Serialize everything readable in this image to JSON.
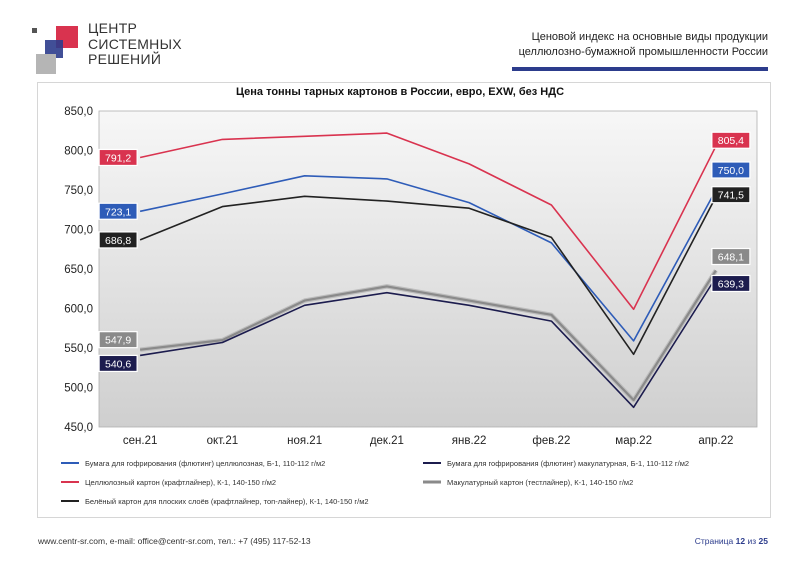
{
  "header": {
    "logo_lines": [
      "ЦЕНТР",
      "СИСТЕМНЫХ",
      "РЕШЕНИЙ"
    ],
    "title_line1": "Ценовой индекс на основные виды продукции",
    "title_line2": "целлюлозно-бумажной промышленности России"
  },
  "colors": {
    "accent": "#2c3c8c",
    "logo_red": "#d9334f",
    "logo_blue": "#2c3c8c",
    "logo_gray": "#b5b5b5"
  },
  "chart_data": {
    "type": "line",
    "title": "Цена тонны тарных картонов в России, евро, EXW, без НДС",
    "categories": [
      "сен.21",
      "окт.21",
      "ноя.21",
      "дек.21",
      "янв.22",
      "фев.22",
      "мар.22",
      "апр.22"
    ],
    "ylim": [
      450,
      850
    ],
    "yticks": [
      "850,0",
      "800,0",
      "750,0",
      "700,0",
      "650,0",
      "600,0",
      "550,0",
      "500,0",
      "450,0"
    ],
    "grid": false,
    "legend_position": "bottom",
    "series": [
      {
        "name": "Бумага для гофрирования (флютинг) целлюлозная, Б-1, 110-112 г/м2",
        "color": "#2e5cb8",
        "values": [
          723.1,
          745,
          768,
          764,
          734,
          683,
          559,
          750.0
        ],
        "labels": [
          "723,1",
          "750,0"
        ]
      },
      {
        "name": "Бумага для гофрирования (флютинг) макулатурная, Б-1, 110-112 г/м2",
        "color": "#1c1c4e",
        "values": [
          540.6,
          557,
          604,
          620,
          604,
          584,
          475,
          639.3
        ],
        "labels": [
          "540,6",
          "639,3"
        ]
      },
      {
        "name": "Целлюлозный картон (крафтлайнер), К-1, 140-150 г/м2",
        "color": "#d9334f",
        "values": [
          791.2,
          814,
          818,
          822,
          783,
          731,
          599,
          805.4
        ],
        "labels": [
          "791,2",
          "805,4"
        ]
      },
      {
        "name": "Макулатурный картон (тестлайнер), К-1, 140-150 г/м2",
        "color": "#8a8a8a",
        "values": [
          547.9,
          560,
          610,
          628,
          610,
          592,
          484,
          648.1
        ],
        "labels": [
          "547,9",
          "648,1"
        ]
      },
      {
        "name": "Белёный картон для плоских слоёв (крафтлайнер, топ-лайнер), К-1, 140-150 г/м2",
        "color": "#222222",
        "values": [
          686.8,
          729,
          742,
          736,
          727,
          690,
          542,
          741.5
        ],
        "labels": [
          "686,8",
          "741,5"
        ]
      }
    ]
  },
  "footer": {
    "contacts": "www.centr-sr.com, e-mail: office@centr-sr.com, тел.: +7 (495) 117-52-13",
    "page_word": "Страница",
    "page_current": "12",
    "page_of": "из",
    "page_total": "25"
  }
}
